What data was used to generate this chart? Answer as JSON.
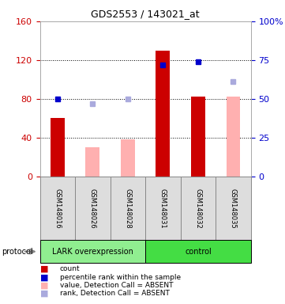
{
  "title": "GDS2553 / 143021_at",
  "samples": [
    "GSM148016",
    "GSM148026",
    "GSM148028",
    "GSM148031",
    "GSM148032",
    "GSM148035"
  ],
  "left_ylim": [
    0,
    160
  ],
  "right_ylim": [
    0,
    100
  ],
  "left_yticks": [
    0,
    40,
    80,
    120,
    160
  ],
  "right_yticks": [
    0,
    25,
    50,
    75,
    100
  ],
  "right_yticklabels": [
    "0",
    "25",
    "50",
    "75",
    "100%"
  ],
  "red_bars": {
    "GSM148016": 60,
    "GSM148031": 130,
    "GSM148032": 82
  },
  "pink_bars": {
    "GSM148026": 30,
    "GSM148028": 38,
    "GSM148035": 82
  },
  "blue_squares": {
    "GSM148016": 50,
    "GSM148031": 72,
    "GSM148032": 74
  },
  "light_blue_squares": {
    "GSM148026": 47,
    "GSM148028": 50,
    "GSM148035": 61
  },
  "protocol_groups": [
    {
      "label": "LARK overexpression",
      "indices": [
        0,
        1,
        2
      ],
      "color": "#90EE90"
    },
    {
      "label": "control",
      "indices": [
        3,
        4,
        5
      ],
      "color": "#44DD44"
    }
  ],
  "protocol_label": "protocol",
  "colors": {
    "red_bar": "#CC0000",
    "pink_bar": "#FFB0B0",
    "blue_square": "#0000CC",
    "light_blue_square": "#AAAADD",
    "left_axis": "#CC0000",
    "right_axis": "#0000CC",
    "sample_box_bg": "#DDDDDD",
    "sample_box_border": "#888888"
  },
  "legend": [
    {
      "color": "#CC0000",
      "label": "count"
    },
    {
      "color": "#0000CC",
      "label": "percentile rank within the sample"
    },
    {
      "color": "#FFB0B0",
      "label": "value, Detection Call = ABSENT"
    },
    {
      "color": "#AAAADD",
      "label": "rank, Detection Call = ABSENT"
    }
  ],
  "bar_width": 0.4
}
